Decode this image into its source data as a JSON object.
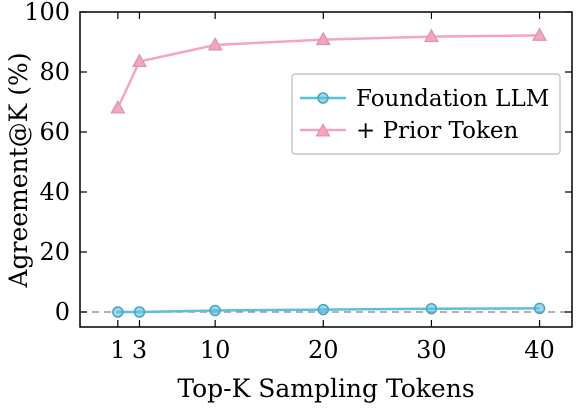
{
  "chart_data": {
    "type": "line",
    "xlabel": "Top-K Sampling Tokens",
    "ylabel": "Agreement@K (%)",
    "xlim": [
      -2.5,
      43
    ],
    "ylim": [
      -5,
      100
    ],
    "xticks": [
      1,
      3,
      10,
      20,
      30,
      40
    ],
    "yticks": [
      0,
      20,
      40,
      60,
      80,
      100
    ],
    "grid": false,
    "legend_position": "right",
    "reference_line": {
      "y": 0,
      "style": "dashed",
      "color": "#999999"
    },
    "series": [
      {
        "name": "Foundation LLM",
        "marker": "circle",
        "color": "#5bc0e0",
        "x": [
          1,
          3,
          10,
          20,
          30,
          40
        ],
        "y": [
          0,
          0,
          0.5,
          0.8,
          1.1,
          1.2
        ]
      },
      {
        "name": "+ Prior Token",
        "marker": "triangle",
        "color": "#f4a6bc",
        "x": [
          1,
          3,
          10,
          20,
          30,
          40
        ],
        "y": [
          68,
          83.5,
          89,
          90.8,
          91.8,
          92.2
        ]
      }
    ]
  }
}
